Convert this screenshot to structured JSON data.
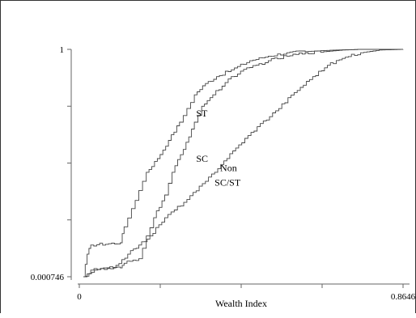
{
  "chart_data": {
    "type": "line",
    "xlabel": "Wealth Index",
    "ylabel": "",
    "xlim": [
      0,
      0.8646
    ],
    "ylim": [
      0.000746,
      1
    ],
    "x_tick_labels": [
      "0",
      "0.8646"
    ],
    "y_tick_labels": [
      "0.000746",
      "1"
    ],
    "grid": false,
    "series": [
      {
        "name": "ST",
        "points": [
          [
            0,
            0.000746
          ],
          [
            0.01,
            0.1
          ],
          [
            0.02,
            0.14
          ],
          [
            0.1,
            0.15
          ],
          [
            0.11,
            0.22
          ],
          [
            0.13,
            0.3
          ],
          [
            0.15,
            0.38
          ],
          [
            0.17,
            0.46
          ],
          [
            0.2,
            0.52
          ],
          [
            0.23,
            0.6
          ],
          [
            0.26,
            0.68
          ],
          [
            0.28,
            0.74
          ],
          [
            0.3,
            0.8
          ],
          [
            0.33,
            0.85
          ],
          [
            0.36,
            0.88
          ],
          [
            0.4,
            0.91
          ],
          [
            0.45,
            0.95
          ],
          [
            0.5,
            0.97
          ],
          [
            0.55,
            0.985
          ],
          [
            0.6,
            0.99
          ],
          [
            0.65,
            0.995
          ],
          [
            0.7,
            0.998
          ],
          [
            0.75,
            1.0
          ],
          [
            0.8646,
            1.0
          ]
        ]
      },
      {
        "name": "SC",
        "points": [
          [
            0,
            0.000746
          ],
          [
            0.03,
            0.03
          ],
          [
            0.1,
            0.04
          ],
          [
            0.11,
            0.06
          ],
          [
            0.15,
            0.08
          ],
          [
            0.17,
            0.18
          ],
          [
            0.19,
            0.26
          ],
          [
            0.22,
            0.36
          ],
          [
            0.24,
            0.46
          ],
          [
            0.27,
            0.56
          ],
          [
            0.3,
            0.68
          ],
          [
            0.32,
            0.75
          ],
          [
            0.35,
            0.8
          ],
          [
            0.4,
            0.88
          ],
          [
            0.45,
            0.92
          ],
          [
            0.5,
            0.95
          ],
          [
            0.55,
            0.97
          ],
          [
            0.6,
            0.985
          ],
          [
            0.65,
            0.99
          ],
          [
            0.7,
            0.997
          ],
          [
            0.75,
            1.0
          ],
          [
            0.8646,
            1.0
          ]
        ]
      },
      {
        "name": "Non\nSC/ST",
        "points": [
          [
            0,
            0.000746
          ],
          [
            0.02,
            0.03
          ],
          [
            0.08,
            0.04
          ],
          [
            0.12,
            0.1
          ],
          [
            0.15,
            0.14
          ],
          [
            0.18,
            0.18
          ],
          [
            0.22,
            0.26
          ],
          [
            0.28,
            0.34
          ],
          [
            0.33,
            0.42
          ],
          [
            0.38,
            0.51
          ],
          [
            0.42,
            0.58
          ],
          [
            0.47,
            0.66
          ],
          [
            0.52,
            0.73
          ],
          [
            0.57,
            0.81
          ],
          [
            0.62,
            0.88
          ],
          [
            0.66,
            0.93
          ],
          [
            0.7,
            0.96
          ],
          [
            0.75,
            0.985
          ],
          [
            0.8,
            0.997
          ],
          [
            0.8646,
            1.0
          ]
        ]
      }
    ],
    "annotations": [
      {
        "text": "ST",
        "x": 0.305,
        "y": 0.705
      },
      {
        "text": "SC",
        "x": 0.305,
        "y": 0.505
      },
      {
        "text": "Non",
        "x": 0.37,
        "y": 0.465
      },
      {
        "text": "SC/ST",
        "x": 0.355,
        "y": 0.4
      }
    ]
  }
}
